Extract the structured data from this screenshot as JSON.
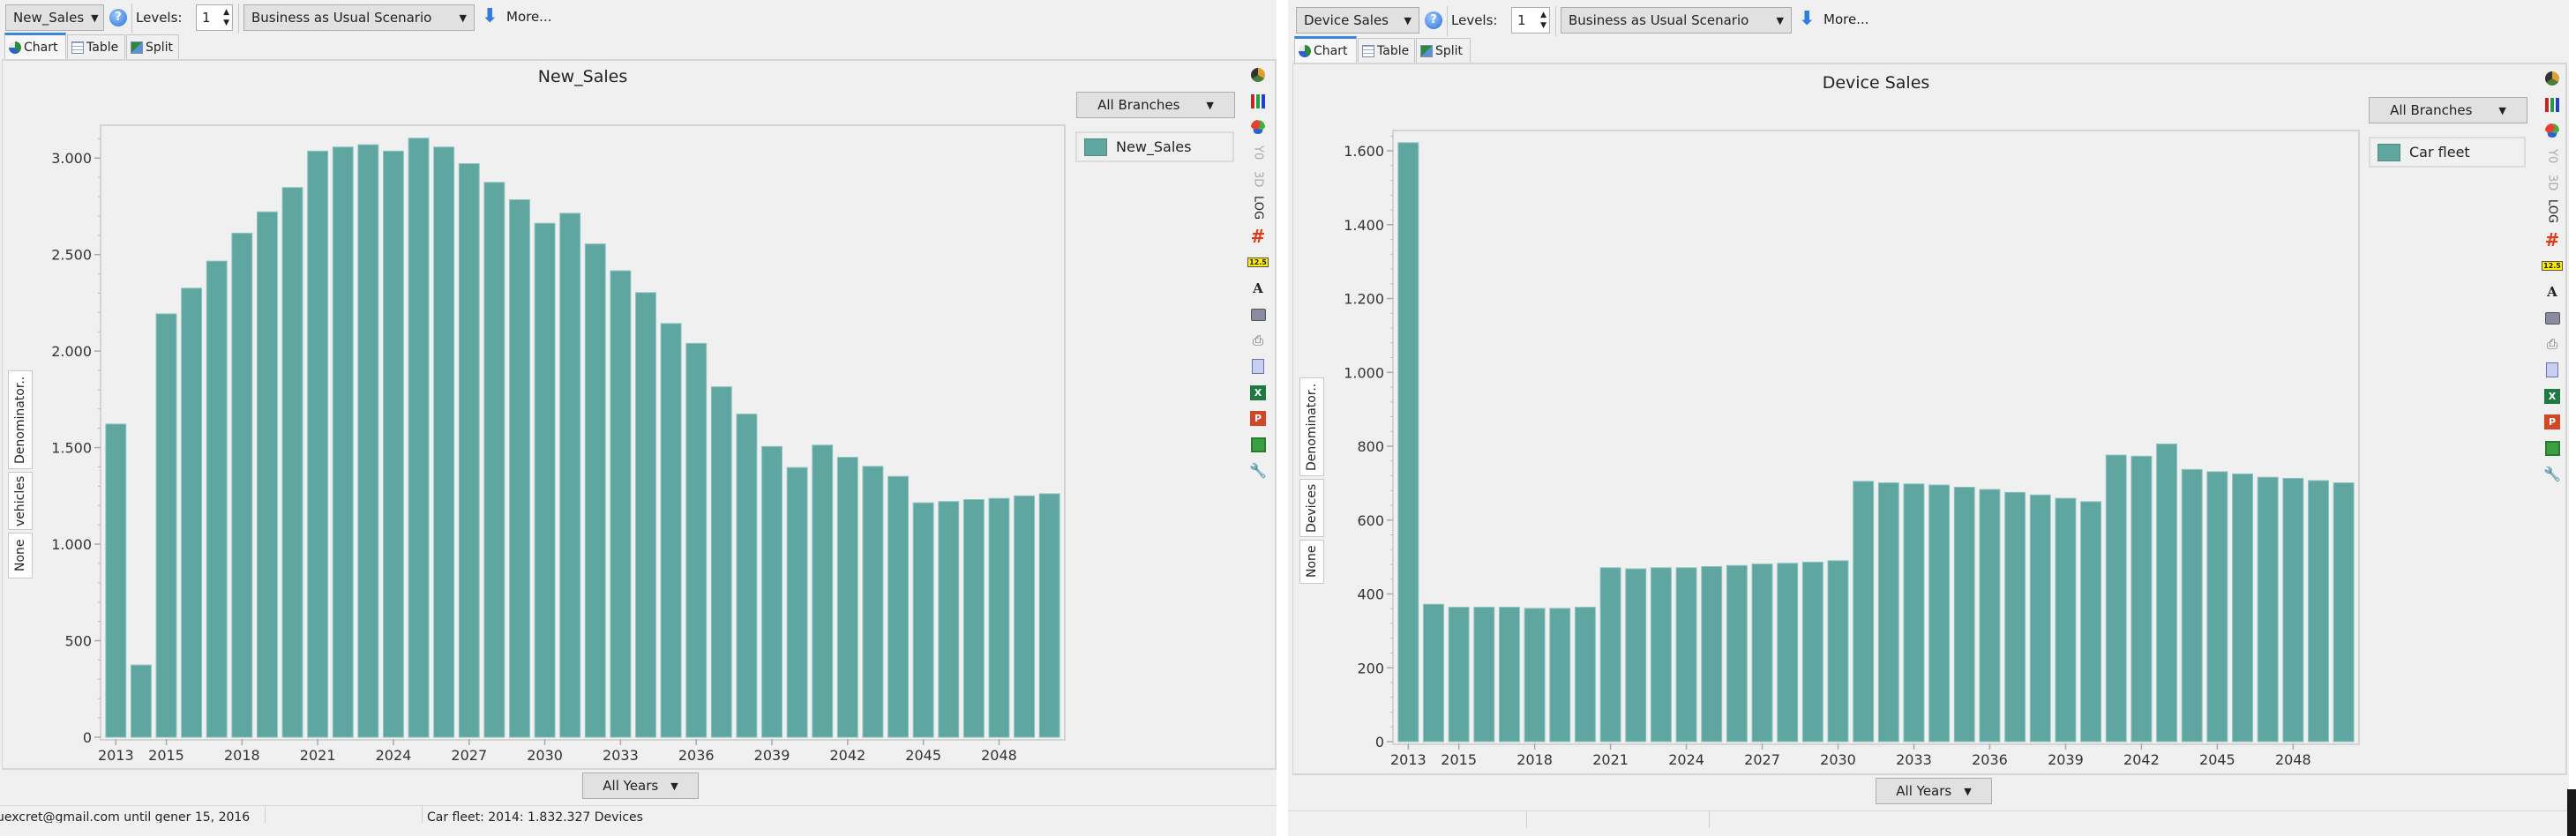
{
  "panels": [
    {
      "toolbar": {
        "variable": "New_Sales",
        "levels_label": "Levels:",
        "levels_value": "1",
        "scenario": "Business as Usual Scenario",
        "more": "More..."
      },
      "tabs": [
        "Chart",
        "Table",
        "Split"
      ],
      "active_tab": "Chart",
      "branches_dropdown": "All Branches",
      "years_dropdown": "All Years",
      "side_tabs": [
        "Denominator..",
        "vehicles",
        "None"
      ],
      "icons": {
        "y0": "Y0",
        "3d": "3D",
        "log": "LOG",
        "number_badge": "12.5"
      },
      "status": {
        "left": "uexcret@gmail.com until gener 15, 2016",
        "right": "Car fleet: 2014: 1.832.327 Devices"
      }
    },
    {
      "toolbar": {
        "variable": "Device Sales",
        "levels_label": "Levels:",
        "levels_value": "1",
        "scenario": "Business as Usual Scenario",
        "more": "More..."
      },
      "tabs": [
        "Chart",
        "Table",
        "Split"
      ],
      "active_tab": "Chart",
      "branches_dropdown": "All Branches",
      "years_dropdown": "All Years",
      "side_tabs": [
        "Denominator..",
        "Devices",
        "None"
      ],
      "icons": {
        "y0": "Y0",
        "3d": "3D",
        "log": "LOG",
        "number_badge": "12.5"
      }
    }
  ],
  "colors": {
    "bar": "#5fa5a0",
    "background": "#f0f0f0",
    "accent": "#3b86d6"
  },
  "chart_data": [
    {
      "type": "bar",
      "title": "New_Sales",
      "legend": [
        "New_Sales"
      ],
      "legend_position": "right",
      "categories": [
        2013,
        2014,
        2015,
        2016,
        2017,
        2018,
        2019,
        2020,
        2021,
        2022,
        2023,
        2024,
        2025,
        2026,
        2027,
        2028,
        2029,
        2030,
        2031,
        2032,
        2033,
        2034,
        2035,
        2036,
        2037,
        2038,
        2039,
        2040,
        2041,
        2042,
        2043,
        2044,
        2045,
        2046,
        2047,
        2048,
        2049,
        2050
      ],
      "series": [
        {
          "name": "New_Sales",
          "values": [
            1622,
            374,
            2193,
            2326,
            2466,
            2611,
            2721,
            2847,
            3036,
            3057,
            3069,
            3036,
            3103,
            3057,
            2971,
            2874,
            2784,
            2662,
            2714,
            2555,
            2416,
            2303,
            2143,
            2040,
            1815,
            1674,
            1506,
            1397,
            1513,
            1450,
            1403,
            1351,
            1214,
            1221,
            1231,
            1237,
            1250,
            1261
          ]
        }
      ],
      "x_tick_labels": [
        "2013",
        "2015",
        "2018",
        "2021",
        "2024",
        "2027",
        "2030",
        "2033",
        "2036",
        "2039",
        "2042",
        "2045",
        "2048"
      ],
      "y_ticks": [
        0,
        500,
        1000,
        1500,
        2000,
        2500,
        3000
      ],
      "y_tick_labels": [
        "0",
        "500",
        "1.000",
        "1.500",
        "2.000",
        "2.500",
        "3.000"
      ],
      "ylim": [
        0,
        3170
      ],
      "grid": false
    },
    {
      "type": "bar",
      "title": "Device Sales",
      "legend": [
        "Car fleet"
      ],
      "legend_position": "right",
      "categories": [
        2013,
        2014,
        2015,
        2016,
        2017,
        2018,
        2019,
        2020,
        2021,
        2022,
        2023,
        2024,
        2025,
        2026,
        2027,
        2028,
        2029,
        2030,
        2031,
        2032,
        2033,
        2034,
        2035,
        2036,
        2037,
        2038,
        2039,
        2040,
        2041,
        2042,
        2043,
        2044,
        2045,
        2046,
        2047,
        2048,
        2049,
        2050
      ],
      "series": [
        {
          "name": "Car fleet",
          "values": [
            1622,
            372,
            364,
            364,
            364,
            361,
            361,
            364,
            471,
            468,
            471,
            471,
            474,
            477,
            481,
            483,
            486,
            490,
            705,
            701,
            698,
            695,
            689,
            683,
            675,
            668,
            659,
            650,
            776,
            773,
            806,
            737,
            731,
            725,
            716,
            713,
            707,
            701
          ]
        }
      ],
      "x_tick_labels": [
        "2013",
        "2015",
        "2018",
        "2021",
        "2024",
        "2027",
        "2030",
        "2033",
        "2036",
        "2039",
        "2042",
        "2045",
        "2048"
      ],
      "y_ticks": [
        0,
        200,
        400,
        600,
        800,
        1000,
        1200,
        1400,
        1600
      ],
      "y_tick_labels": [
        "0",
        "200",
        "400",
        "600",
        "800",
        "1.000",
        "1.200",
        "1.400",
        "1.600"
      ],
      "ylim": [
        0,
        1655
      ],
      "grid": false
    }
  ]
}
